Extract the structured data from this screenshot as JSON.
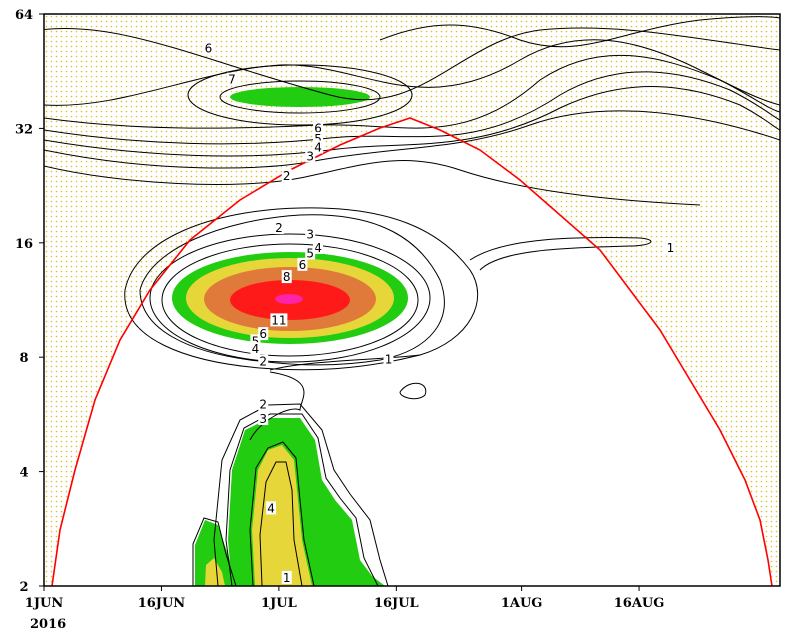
{
  "chart_data": {
    "type": "heatmap",
    "title": "",
    "xlabel": "",
    "ylabel": "",
    "x_ticks": [
      "1JUN",
      "16JUN",
      "1JUL",
      "16JUL",
      "1AUG",
      "16AUG"
    ],
    "x_start_note": "2016",
    "y_scale": "log2",
    "y_ticks": [
      2,
      4,
      8,
      16,
      32,
      64
    ],
    "ylim": [
      2,
      64
    ],
    "contour_levels": [
      1,
      2,
      3,
      4,
      5,
      6,
      7,
      8,
      9,
      10,
      11
    ],
    "contour_labels": [
      {
        "text": "6",
        "date": "2016-06-22",
        "period": 52
      },
      {
        "text": "7",
        "date": "2016-06-25",
        "period": 43
      },
      {
        "text": "6",
        "date": "2016-07-06",
        "period": 32
      },
      {
        "text": "5",
        "date": "2016-07-06",
        "period": 30
      },
      {
        "text": "4",
        "date": "2016-07-06",
        "period": 28.5
      },
      {
        "text": "3",
        "date": "2016-07-05",
        "period": 27
      },
      {
        "text": "2",
        "date": "2016-07-02",
        "period": 24
      },
      {
        "text": "2",
        "date": "2016-07-01",
        "period": 17.5
      },
      {
        "text": "3",
        "date": "2016-07-05",
        "period": 16.8
      },
      {
        "text": "4",
        "date": "2016-07-06",
        "period": 15.5
      },
      {
        "text": "5",
        "date": "2016-07-05",
        "period": 15
      },
      {
        "text": "6",
        "date": "2016-07-04",
        "period": 14
      },
      {
        "text": "8",
        "date": "2016-07-02",
        "period": 13
      },
      {
        "text": "11",
        "date": "2016-07-01",
        "period": 10
      },
      {
        "text": "6",
        "date": "2016-06-29",
        "period": 9.2
      },
      {
        "text": "5",
        "date": "2016-06-28",
        "period": 8.8
      },
      {
        "text": "4",
        "date": "2016-06-28",
        "period": 8.4
      },
      {
        "text": "2",
        "date": "2016-06-29",
        "period": 7.8
      },
      {
        "text": "1",
        "date": "2016-07-15",
        "period": 7.9
      },
      {
        "text": "1",
        "date": "2016-08-20",
        "period": 15.5
      },
      {
        "text": "2",
        "date": "2016-06-29",
        "period": 6
      },
      {
        "text": "3",
        "date": "2016-06-29",
        "period": 5.5
      },
      {
        "text": "4",
        "date": "2016-06-30",
        "period": 3.2
      },
      {
        "text": "1",
        "date": "2016-07-02",
        "period": 2.1
      }
    ],
    "cone_of_influence_color": "#ff0000",
    "significance_hatch_color": "#e0c020",
    "fill_colors": {
      "level_4_to_6": "#22cc11",
      "level_6_to_8": "#e6d63a",
      "level_8_to_10": "#e07a3a",
      "level_10_plus": "#ff1a1a",
      "peak": "#ff22aa"
    },
    "grid": false,
    "legend": "none"
  }
}
